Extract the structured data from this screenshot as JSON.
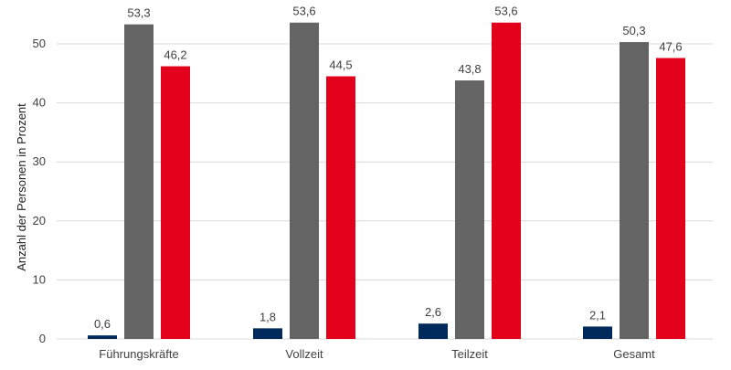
{
  "chart_data": {
    "type": "bar",
    "title": "",
    "xlabel": "",
    "ylabel": "Anzahl der Personen in Prozent",
    "ylim": [
      0,
      55
    ],
    "yticks": [
      0,
      10,
      20,
      30,
      40,
      50
    ],
    "grid": true,
    "legend": "none",
    "categories": [
      "Führungskräfte",
      "Vollzeit",
      "Teilzeit",
      "Gesamt"
    ],
    "series": [
      {
        "values": [
          0.6,
          1.8,
          2.6,
          2.1
        ],
        "labels": [
          "0,6",
          "1,8",
          "2,6",
          "2,1"
        ],
        "color": "#002a5c"
      },
      {
        "values": [
          53.3,
          53.6,
          43.8,
          50.3
        ],
        "labels": [
          "53,3",
          "53,6",
          "43,8",
          "50,3"
        ],
        "color": "#646464"
      },
      {
        "values": [
          46.2,
          44.5,
          53.6,
          47.6
        ],
        "labels": [
          "46,2",
          "44,5",
          "53,6",
          "47,6"
        ],
        "color": "#e2001a"
      }
    ]
  }
}
